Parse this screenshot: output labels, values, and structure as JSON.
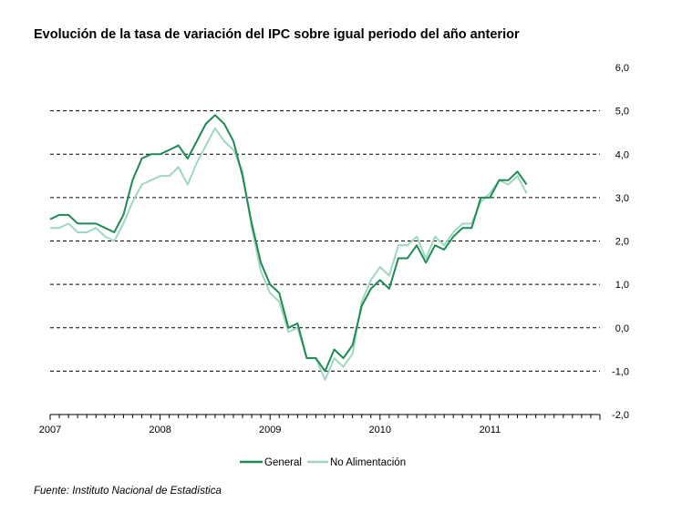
{
  "title": "Evolución de la tasa de variación del IPC sobre igual  periodo del año anterior",
  "source": "Fuente: Instituto Nacional de Estadística",
  "colors": {
    "general": "#1e8a55",
    "no_alimentacion": "#9fd8bf",
    "grid": "#000000",
    "axis": "#000000"
  },
  "chart_data": {
    "type": "line",
    "title": "Evolución de la tasa de variación del IPC sobre igual  periodo del año anterior",
    "xlabel": "",
    "ylabel": "",
    "ylim": [
      -2.0,
      6.0
    ],
    "y_ticks": [
      "6,0",
      "5,0",
      "4,0",
      "3,0",
      "2,0",
      "1,0",
      "0,0",
      "-1,0",
      "-2,0"
    ],
    "y_tick_values": [
      6,
      5,
      4,
      3,
      2,
      1,
      0,
      -1,
      -2
    ],
    "x_tick_labels": [
      "2007",
      "2008",
      "2009",
      "2010",
      "2011"
    ],
    "x_range_months": [
      0,
      60
    ],
    "y_axis_position": "right",
    "grid": "horizontal dashed",
    "legend_position": "bottom-center",
    "series": [
      {
        "name": "General",
        "values": [
          2.5,
          2.6,
          2.6,
          2.4,
          2.4,
          2.4,
          2.3,
          2.2,
          2.6,
          3.4,
          3.9,
          4.0,
          4.0,
          4.1,
          4.2,
          3.9,
          4.3,
          4.7,
          4.9,
          4.7,
          4.3,
          3.5,
          2.4,
          1.5,
          1.0,
          0.8,
          0.0,
          0.1,
          -0.7,
          -0.7,
          -1.0,
          -0.5,
          -0.7,
          -0.4,
          0.5,
          0.9,
          1.1,
          0.9,
          1.6,
          1.6,
          1.9,
          1.5,
          1.9,
          1.8,
          2.1,
          2.3,
          2.3,
          3.0,
          3.0,
          3.4,
          3.4,
          3.6,
          3.3
        ]
      },
      {
        "name": "No Alimentación",
        "values": [
          2.3,
          2.3,
          2.4,
          2.2,
          2.2,
          2.3,
          2.1,
          2.0,
          2.4,
          2.9,
          3.3,
          3.4,
          3.5,
          3.5,
          3.7,
          3.3,
          3.8,
          4.2,
          4.6,
          4.3,
          4.1,
          3.6,
          2.3,
          1.3,
          0.8,
          0.6,
          -0.1,
          0.0,
          -0.7,
          -0.7,
          -1.2,
          -0.7,
          -0.9,
          -0.6,
          0.6,
          1.1,
          1.4,
          1.2,
          1.9,
          1.9,
          2.1,
          1.6,
          2.1,
          1.9,
          2.2,
          2.4,
          2.4,
          2.9,
          3.1,
          3.4,
          3.3,
          3.5,
          3.1
        ]
      }
    ]
  }
}
